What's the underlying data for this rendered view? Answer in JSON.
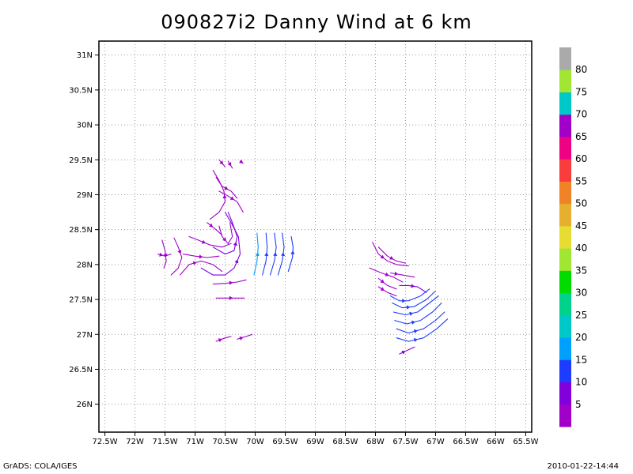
{
  "title": "090827i2 Danny Wind at 6 km",
  "footer": {
    "left": "GrADS: COLA/IGES",
    "right": "2010-01-22-14:44"
  },
  "chart_data": {
    "type": "streamline",
    "title": "090827i2 Danny Wind at 6 km",
    "xlim": [
      -72.6,
      -65.4
    ],
    "ylim": [
      25.6,
      31.2
    ],
    "grid": true,
    "x_ticks": [
      {
        "v": -72.5,
        "label": "72.5W"
      },
      {
        "v": -72,
        "label": "72W"
      },
      {
        "v": -71.5,
        "label": "71.5W"
      },
      {
        "v": -71,
        "label": "71W"
      },
      {
        "v": -70.5,
        "label": "70.5W"
      },
      {
        "v": -70,
        "label": "70W"
      },
      {
        "v": -69.5,
        "label": "69.5W"
      },
      {
        "v": -69,
        "label": "69W"
      },
      {
        "v": -68.5,
        "label": "68.5W"
      },
      {
        "v": -68,
        "label": "68W"
      },
      {
        "v": -67.5,
        "label": "67.5W"
      },
      {
        "v": -67,
        "label": "67W"
      },
      {
        "v": -66.5,
        "label": "66.5W"
      },
      {
        "v": -66,
        "label": "66W"
      },
      {
        "v": -65.5,
        "label": "65.5W"
      }
    ],
    "y_ticks": [
      {
        "v": 26,
        "label": "26N"
      },
      {
        "v": 26.5,
        "label": "26.5N"
      },
      {
        "v": 27,
        "label": "27N"
      },
      {
        "v": 27.5,
        "label": "27.5N"
      },
      {
        "v": 28,
        "label": "28N"
      },
      {
        "v": 28.5,
        "label": "28.5N"
      },
      {
        "v": 29,
        "label": "29N"
      },
      {
        "v": 29.5,
        "label": "29.5N"
      },
      {
        "v": 30,
        "label": "30N"
      },
      {
        "v": 30.5,
        "label": "30.5N"
      },
      {
        "v": 31,
        "label": "31N"
      }
    ],
    "colorbar": {
      "colors": [
        "#a000c8",
        "#8200dc",
        "#1e3cff",
        "#00a0ff",
        "#00c8c8",
        "#00d28c",
        "#00dc00",
        "#a0e632",
        "#e6dc32",
        "#e6af2d",
        "#f08228",
        "#fa3c3c",
        "#f00082",
        "#a000c8",
        "#00c8c8",
        "#a0e632",
        "#aaaaaa"
      ],
      "labels": [
        "5",
        "10",
        "15",
        "20",
        "25",
        "30",
        "35",
        "40",
        "45",
        "50",
        "55",
        "60",
        "65",
        "70",
        "75",
        "80"
      ]
    },
    "streamlines": [
      {
        "color": "#a000c8",
        "points": [
          [
            -71.55,
            28.35
          ],
          [
            -71.5,
            28.2
          ],
          [
            -71.48,
            28.05
          ],
          [
            -71.52,
            27.95
          ]
        ]
      },
      {
        "color": "#a000c8",
        "points": [
          [
            -71.62,
            28.15
          ],
          [
            -71.5,
            28.12
          ],
          [
            -71.4,
            28.15
          ]
        ]
      },
      {
        "color": "#a000c8",
        "points": [
          [
            -71.35,
            28.38
          ],
          [
            -71.28,
            28.25
          ],
          [
            -71.22,
            28.1
          ],
          [
            -71.28,
            27.95
          ],
          [
            -71.4,
            27.85
          ]
        ]
      },
      {
        "color": "#a000c8",
        "points": [
          [
            -71.1,
            28.4
          ],
          [
            -70.95,
            28.35
          ],
          [
            -70.75,
            28.28
          ],
          [
            -70.55,
            28.25
          ],
          [
            -70.4,
            28.3
          ]
        ]
      },
      {
        "color": "#a000c8",
        "points": [
          [
            -71.2,
            28.15
          ],
          [
            -71.0,
            28.12
          ],
          [
            -70.8,
            28.1
          ],
          [
            -70.6,
            28.12
          ]
        ]
      },
      {
        "color": "#a000c8",
        "points": [
          [
            -71.25,
            27.85
          ],
          [
            -71.1,
            28.0
          ],
          [
            -70.9,
            28.05
          ],
          [
            -70.7,
            28.0
          ],
          [
            -70.55,
            27.9
          ]
        ]
      },
      {
        "color": "#8200dc",
        "points": [
          [
            -70.9,
            27.95
          ],
          [
            -70.7,
            27.85
          ],
          [
            -70.5,
            27.85
          ],
          [
            -70.35,
            27.95
          ],
          [
            -70.25,
            28.15
          ],
          [
            -70.28,
            28.4
          ],
          [
            -70.4,
            28.6
          ],
          [
            -70.5,
            28.75
          ]
        ]
      },
      {
        "color": "#8200dc",
        "points": [
          [
            -70.7,
            28.25
          ],
          [
            -70.5,
            28.15
          ],
          [
            -70.35,
            28.2
          ],
          [
            -70.3,
            28.4
          ],
          [
            -70.38,
            28.6
          ],
          [
            -70.45,
            28.75
          ]
        ]
      },
      {
        "color": "#a000c8",
        "points": [
          [
            -70.6,
            28.55
          ],
          [
            -70.55,
            28.4
          ],
          [
            -70.45,
            28.3
          ],
          [
            -70.38,
            28.4
          ],
          [
            -70.42,
            28.6
          ]
        ]
      },
      {
        "color": "#a000c8",
        "points": [
          [
            -70.75,
            28.65
          ],
          [
            -70.6,
            28.75
          ],
          [
            -70.5,
            28.9
          ],
          [
            -70.52,
            29.05
          ],
          [
            -70.6,
            29.2
          ],
          [
            -70.7,
            29.35
          ]
        ]
      },
      {
        "color": "#a000c8",
        "points": [
          [
            -70.6,
            29.05
          ],
          [
            -70.45,
            28.98
          ],
          [
            -70.3,
            28.9
          ],
          [
            -70.2,
            28.75
          ]
        ]
      },
      {
        "color": "#a000c8",
        "points": [
          [
            -70.65,
            29.25
          ],
          [
            -70.55,
            29.12
          ],
          [
            -70.4,
            29.05
          ],
          [
            -70.3,
            28.95
          ]
        ]
      },
      {
        "color": "#a000c8",
        "points": [
          [
            -70.6,
            29.5
          ],
          [
            -70.5,
            29.4
          ]
        ]
      },
      {
        "color": "#a000c8",
        "points": [
          [
            -70.45,
            29.48
          ],
          [
            -70.38,
            29.38
          ]
        ]
      },
      {
        "color": "#a000c8",
        "points": [
          [
            -70.25,
            29.48
          ],
          [
            -70.2,
            29.45
          ]
        ]
      },
      {
        "color": "#a000c8",
        "points": [
          [
            -70.8,
            28.6
          ],
          [
            -70.65,
            28.5
          ],
          [
            -70.55,
            28.42
          ]
        ]
      },
      {
        "color": "#a000c8",
        "points": [
          [
            -70.7,
            27.72
          ],
          [
            -70.5,
            27.73
          ],
          [
            -70.3,
            27.75
          ],
          [
            -70.15,
            27.78
          ]
        ]
      },
      {
        "color": "#a000c8",
        "points": [
          [
            -70.65,
            27.52
          ],
          [
            -70.5,
            27.52
          ],
          [
            -70.3,
            27.52
          ],
          [
            -70.18,
            27.52
          ]
        ]
      },
      {
        "color": "#a000c8",
        "points": [
          [
            -70.65,
            26.9
          ],
          [
            -70.5,
            26.95
          ],
          [
            -70.4,
            26.97
          ]
        ]
      },
      {
        "color": "#a000c8",
        "points": [
          [
            -70.3,
            26.93
          ],
          [
            -70.15,
            26.97
          ],
          [
            -70.05,
            27.0
          ]
        ]
      },
      {
        "color": "#00a0ff",
        "points": [
          [
            -70.02,
            27.85
          ],
          [
            -69.97,
            28.05
          ],
          [
            -69.95,
            28.25
          ],
          [
            -69.97,
            28.45
          ]
        ]
      },
      {
        "color": "#1e3cff",
        "points": [
          [
            -69.88,
            27.85
          ],
          [
            -69.82,
            28.05
          ],
          [
            -69.8,
            28.25
          ],
          [
            -69.82,
            28.45
          ]
        ]
      },
      {
        "color": "#1e3cff",
        "points": [
          [
            -69.75,
            27.85
          ],
          [
            -69.68,
            28.05
          ],
          [
            -69.65,
            28.25
          ],
          [
            -69.68,
            28.45
          ]
        ]
      },
      {
        "color": "#1e3cff",
        "points": [
          [
            -69.62,
            27.85
          ],
          [
            -69.55,
            28.05
          ],
          [
            -69.52,
            28.25
          ],
          [
            -69.55,
            28.45
          ]
        ]
      },
      {
        "color": "#1e3cff",
        "points": [
          [
            -69.45,
            27.9
          ],
          [
            -69.38,
            28.1
          ],
          [
            -69.37,
            28.25
          ],
          [
            -69.4,
            28.4
          ]
        ]
      },
      {
        "color": "#a000c8",
        "points": [
          [
            -68.05,
            28.32
          ],
          [
            -67.95,
            28.15
          ],
          [
            -67.8,
            28.05
          ],
          [
            -67.65,
            28.0
          ],
          [
            -67.45,
            27.98
          ]
        ]
      },
      {
        "color": "#a000c8",
        "points": [
          [
            -67.95,
            28.25
          ],
          [
            -67.8,
            28.12
          ],
          [
            -67.65,
            28.05
          ],
          [
            -67.5,
            28.02
          ]
        ]
      },
      {
        "color": "#a000c8",
        "points": [
          [
            -68.1,
            27.95
          ],
          [
            -67.9,
            27.88
          ],
          [
            -67.7,
            27.82
          ],
          [
            -67.55,
            27.75
          ]
        ]
      },
      {
        "color": "#a000c8",
        "points": [
          [
            -67.95,
            27.8
          ],
          [
            -67.8,
            27.7
          ],
          [
            -67.65,
            27.65
          ]
        ]
      },
      {
        "color": "#a000c8",
        "points": [
          [
            -67.95,
            27.68
          ],
          [
            -67.8,
            27.6
          ],
          [
            -67.65,
            27.55
          ]
        ]
      },
      {
        "color": "#a000c8",
        "points": [
          [
            -67.75,
            27.88
          ],
          [
            -67.55,
            27.85
          ],
          [
            -67.35,
            27.82
          ]
        ]
      },
      {
        "color": "#8200dc",
        "points": [
          [
            -67.6,
            27.7
          ],
          [
            -67.45,
            27.7
          ],
          [
            -67.3,
            27.68
          ],
          [
            -67.15,
            27.6
          ]
        ]
      },
      {
        "color": "#1e3cff",
        "points": [
          [
            -67.75,
            27.55
          ],
          [
            -67.6,
            27.48
          ],
          [
            -67.45,
            27.48
          ],
          [
            -67.25,
            27.55
          ],
          [
            -67.1,
            27.65
          ]
        ]
      },
      {
        "color": "#1e3cff",
        "points": [
          [
            -67.72,
            27.45
          ],
          [
            -67.55,
            27.38
          ],
          [
            -67.35,
            27.4
          ],
          [
            -67.15,
            27.5
          ],
          [
            -67.0,
            27.62
          ]
        ]
      },
      {
        "color": "#1e3cff",
        "points": [
          [
            -67.7,
            27.32
          ],
          [
            -67.5,
            27.28
          ],
          [
            -67.3,
            27.32
          ],
          [
            -67.1,
            27.45
          ],
          [
            -66.95,
            27.55
          ]
        ]
      },
      {
        "color": "#1e3cff",
        "points": [
          [
            -67.68,
            27.2
          ],
          [
            -67.48,
            27.15
          ],
          [
            -67.25,
            27.2
          ],
          [
            -67.05,
            27.32
          ],
          [
            -66.9,
            27.45
          ]
        ]
      },
      {
        "color": "#1e3cff",
        "points": [
          [
            -67.65,
            27.08
          ],
          [
            -67.45,
            27.02
          ],
          [
            -67.2,
            27.08
          ],
          [
            -67.0,
            27.2
          ],
          [
            -66.85,
            27.32
          ]
        ]
      },
      {
        "color": "#1e3cff",
        "points": [
          [
            -67.65,
            26.95
          ],
          [
            -67.45,
            26.9
          ],
          [
            -67.2,
            26.95
          ],
          [
            -66.98,
            27.08
          ],
          [
            -66.8,
            27.22
          ]
        ]
      },
      {
        "color": "#8200dc",
        "points": [
          [
            -67.6,
            26.72
          ],
          [
            -67.45,
            26.78
          ],
          [
            -67.35,
            26.82
          ]
        ]
      }
    ]
  }
}
